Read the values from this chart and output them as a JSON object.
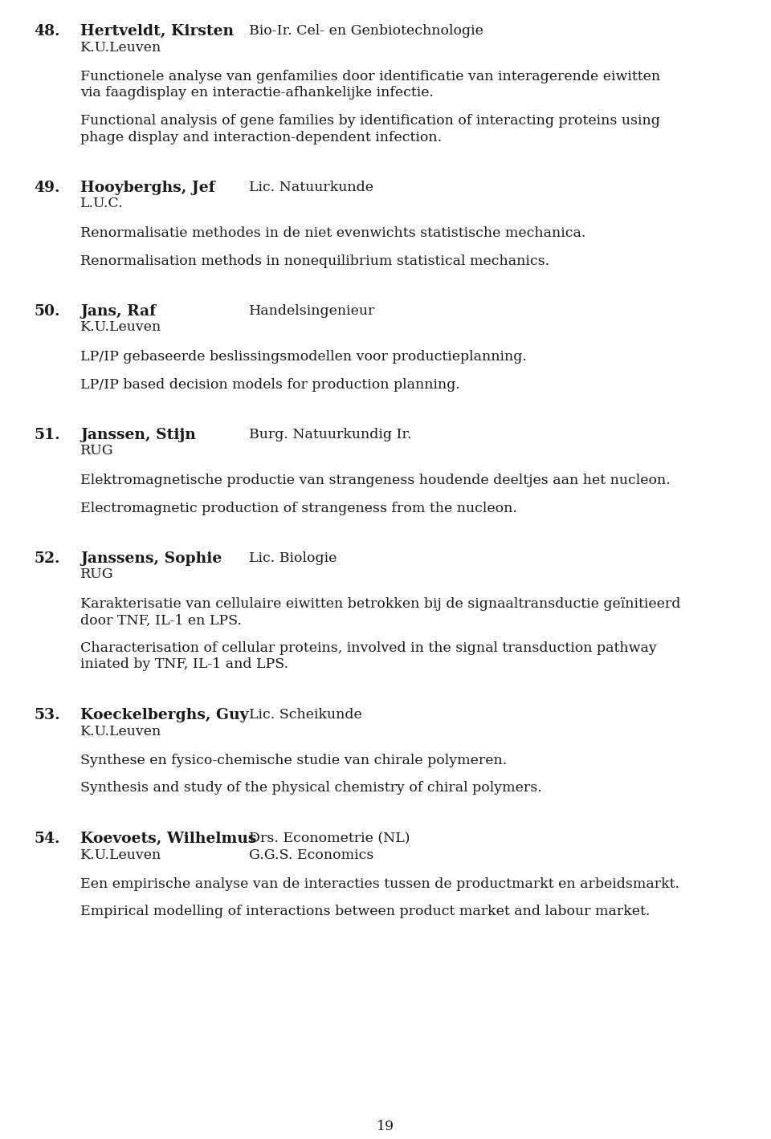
{
  "bg_color": "#ffffff",
  "text_color": "#1a1a1a",
  "page_number": "19",
  "entries": [
    {
      "number": "48.",
      "name": "Hertveldt, Kirsten",
      "degree": "Bio-Ir. Cel- en Genbiotechnologie",
      "institution": "K.U.Leuven",
      "dutch": "Functionele analyse van genfamilies door identificatie van interagerende eiwitten via faagdisplay en interactie-afhankelijke infectie.",
      "english": "Functional analysis of gene families by identification of interacting proteins using phage display and interaction-dependent infection.",
      "dutch_wrap": 83,
      "english_wrap": 88
    },
    {
      "number": "49.",
      "name": "Hooyberghs, Jef",
      "degree": "Lic. Natuurkunde",
      "institution": "L.U.C.",
      "dutch": "Renormalisatie methodes in de niet evenwichts statistische mechanica.",
      "english": "Renormalisation methods in nonequilibrium statistical mechanics.",
      "dutch_wrap": 88,
      "english_wrap": 88
    },
    {
      "number": "50.",
      "name": "Jans, Raf",
      "degree": "Handelsingenieur",
      "institution": "K.U.Leuven",
      "dutch": "LP/IP gebaseerde beslissingsmodellen voor productieplanning.",
      "english": "LP/IP based decision models for production planning.",
      "dutch_wrap": 88,
      "english_wrap": 88
    },
    {
      "number": "51.",
      "name": "Janssen, Stijn",
      "degree": "Burg. Natuurkundig Ir.",
      "institution": "RUG",
      "dutch": "Elektromagnetische productie van strangeness houdende deeltjes aan het nucleon.",
      "english": "Electromagnetic production of strangeness from the nucleon.",
      "dutch_wrap": 88,
      "english_wrap": 88
    },
    {
      "number": "52.",
      "name": "Janssens, Sophie",
      "degree": "Lic. Biologie",
      "institution": "RUG",
      "dutch": "Karakterisatie van cellulaire eiwitten betrokken bij de signaaltransductie geïnitieerd door TNF, IL-1 en LPS.",
      "english": "Characterisation of cellular proteins, involved in the signal transduction pathway iniated by TNF, IL-1 and LPS.",
      "dutch_wrap": 88,
      "english_wrap": 88
    },
    {
      "number": "53.",
      "name": "Koeckelberghs, Guy",
      "degree": "Lic. Scheikunde",
      "institution": "K.U.Leuven",
      "dutch": "Synthese en fysico-chemische studie van chirale polymeren.",
      "english": "Synthesis and study of the physical chemistry of chiral polymers.",
      "dutch_wrap": 88,
      "english_wrap": 88
    },
    {
      "number": "54.",
      "name": "Koevoets, Wilhelmus",
      "degree": "Drs. Econometrie (NL)",
      "degree2": "G.G.S. Economics",
      "institution": "K.U.Leuven",
      "dutch": "Een empirische analyse van de interacties tussen de productmarkt en arbeidsmarkt.",
      "english": "Empirical modelling of interactions between product market and labour market.",
      "dutch_wrap": 88,
      "english_wrap": 88
    }
  ]
}
